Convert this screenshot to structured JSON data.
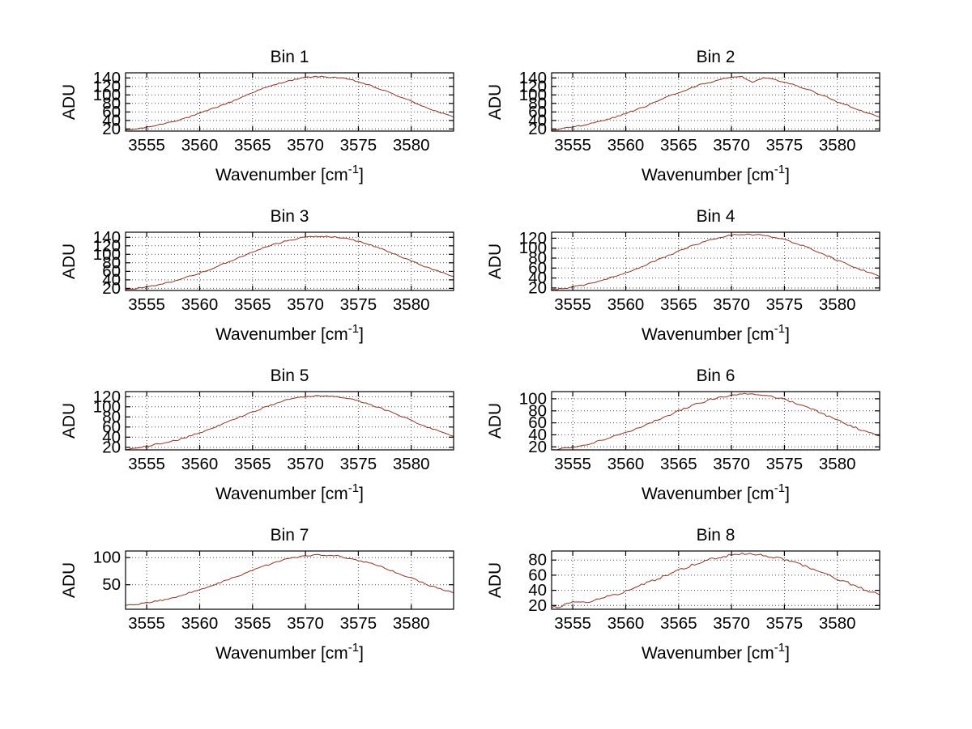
{
  "figure": {
    "background": "#ffffff",
    "axis_color": "#000000",
    "grid_color": "#4a4a4a",
    "line_color": "#9c2f1b"
  },
  "chart_data": {
    "type": "line",
    "layout": "4x2 grid of subplots",
    "xlabel_base": "Wavenumber [cm",
    "xlabel_exp": "-1",
    "xlabel_suffix": "]",
    "xlabel_full": "Wavenumber [cm^-1]",
    "ylabel": "ADU",
    "xlim": [
      3553,
      3584
    ],
    "xticks": [
      3555,
      3560,
      3565,
      3570,
      3575,
      3580
    ],
    "grid": "dotted",
    "x": [
      3553,
      3554,
      3555,
      3556,
      3557,
      3558,
      3559,
      3560,
      3561,
      3562,
      3563,
      3564,
      3565,
      3566,
      3567,
      3568,
      3569,
      3570,
      3571,
      3572,
      3573,
      3574,
      3575,
      3576,
      3577,
      3578,
      3579,
      3580,
      3581,
      3582,
      3583,
      3584
    ],
    "subplots": [
      {
        "title": "Bin 1",
        "ylim": [
          15,
          152
        ],
        "yticks": [
          20,
          40,
          60,
          80,
          100,
          120,
          140
        ],
        "noise": 1.5,
        "y": [
          17,
          20,
          24,
          29,
          35,
          41,
          48,
          56,
          66,
          75,
          84,
          95,
          106,
          115,
          123,
          131,
          136,
          141,
          143,
          142,
          141,
          137,
          131,
          123,
          114,
          105,
          95,
          85,
          75,
          65,
          56,
          48
        ]
      },
      {
        "title": "Bin 2",
        "ylim": [
          15,
          152
        ],
        "yticks": [
          20,
          40,
          60,
          80,
          100,
          120,
          140
        ],
        "noise": 1.5,
        "y": [
          17,
          21,
          25,
          29,
          34,
          41,
          48,
          57,
          65,
          74,
          85,
          96,
          105,
          114,
          124,
          130,
          137,
          141,
          143,
          128,
          141,
          136,
          130,
          123,
          115,
          105,
          95,
          84,
          75,
          65,
          56,
          48
        ]
      },
      {
        "title": "Bin 3",
        "ylim": [
          15,
          152
        ],
        "yticks": [
          20,
          40,
          60,
          80,
          100,
          120,
          140
        ],
        "noise": 1.5,
        "y": [
          17,
          20,
          24,
          28,
          34,
          40,
          48,
          56,
          65,
          75,
          85,
          95,
          105,
          115,
          123,
          130,
          136,
          140,
          142,
          142,
          140,
          136,
          131,
          123,
          115,
          105,
          95,
          85,
          74,
          65,
          56,
          48
        ]
      },
      {
        "title": "Bin 4",
        "ylim": [
          15,
          132
        ],
        "yticks": [
          20,
          40,
          60,
          80,
          100,
          120
        ],
        "noise": 1.4,
        "y": [
          16,
          19,
          22,
          26,
          31,
          37,
          43,
          51,
          59,
          67,
          76,
          85,
          94,
          103,
          110,
          117,
          122,
          126,
          128,
          127,
          126,
          122,
          117,
          110,
          103,
          94,
          85,
          76,
          67,
          59,
          51,
          43
        ]
      },
      {
        "title": "Bin 5",
        "ylim": [
          15,
          130
        ],
        "yticks": [
          20,
          40,
          60,
          80,
          100,
          120
        ],
        "noise": 1.4,
        "y": [
          16,
          18,
          22,
          26,
          30,
          35,
          42,
          49,
          56,
          64,
          73,
          82,
          90,
          98,
          105,
          112,
          117,
          120,
          122,
          121,
          120,
          117,
          112,
          105,
          98,
          90,
          82,
          73,
          64,
          56,
          49,
          42
        ]
      },
      {
        "title": "Bin 6",
        "ylim": [
          15,
          112
        ],
        "yticks": [
          20,
          40,
          60,
          80,
          100
        ],
        "noise": 1.4,
        "y": [
          15,
          17,
          20,
          23,
          27,
          32,
          38,
          44,
          50,
          57,
          65,
          72,
          80,
          87,
          93,
          99,
          103,
          106,
          108,
          107,
          106,
          103,
          99,
          93,
          87,
          80,
          72,
          65,
          57,
          50,
          44,
          38
        ]
      },
      {
        "title": "Bin 7",
        "ylim": [
          5,
          112
        ],
        "yticks": [
          50,
          100
        ],
        "noise": 1.3,
        "y": [
          12,
          14,
          17,
          20,
          24,
          29,
          35,
          41,
          47,
          54,
          62,
          69,
          77,
          84,
          90,
          96,
          100,
          103,
          105,
          104,
          103,
          99,
          95,
          90,
          84,
          77,
          69,
          62,
          54,
          47,
          41,
          35
        ]
      },
      {
        "title": "Bin 8",
        "ylim": [
          15,
          92
        ],
        "yticks": [
          20,
          40,
          60,
          80
        ],
        "noise": 1.5,
        "y": [
          17,
          19,
          26,
          24,
          27,
          31,
          34,
          39,
          44,
          50,
          55,
          61,
          67,
          72,
          77,
          81,
          84,
          87,
          88,
          88,
          86,
          84,
          81,
          77,
          72,
          67,
          61,
          55,
          50,
          44,
          39,
          34
        ]
      }
    ]
  }
}
